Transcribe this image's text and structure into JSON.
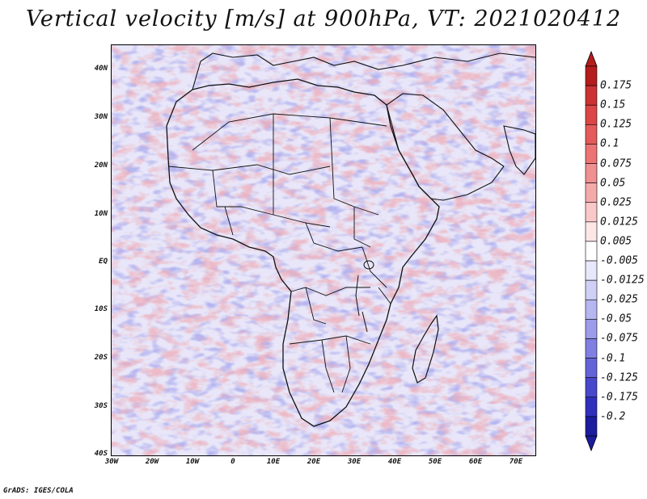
{
  "title": "Vertical velocity [m/s] at 900hPa, VT: 2021020412",
  "credit": "GrADS: IGES/COLA",
  "map": {
    "lat_labels": [
      "40N",
      "30N",
      "20N",
      "10N",
      "EQ",
      "10S",
      "20S",
      "30S",
      "40S"
    ],
    "lon_labels": [
      "30W",
      "20W",
      "10W",
      "0",
      "10E",
      "20E",
      "30E",
      "40E",
      "50E",
      "60E",
      "70E"
    ],
    "lat_range": [
      -40,
      45
    ],
    "lon_range": [
      -30,
      75
    ]
  },
  "colorbar": {
    "levels": [
      "0.175",
      "0.15",
      "0.125",
      "0.1",
      "0.075",
      "0.05",
      "0.025",
      "0.0125",
      "0.005",
      "-0.005",
      "-0.0125",
      "-0.025",
      "-0.05",
      "-0.075",
      "-0.1",
      "-0.125",
      "-0.175",
      "-0.2"
    ],
    "colors": [
      "#b51c1c",
      "#cc3232",
      "#dc4646",
      "#e55a5a",
      "#ec7474",
      "#f19090",
      "#f5aaaa",
      "#f9c8c8",
      "#fce6e6",
      "#ffffff",
      "#e8e8fb",
      "#d0d0f6",
      "#b6b6f0",
      "#9c9cea",
      "#8080e2",
      "#6464d8",
      "#4848cc",
      "#3030bc",
      "#1c1c9e"
    ]
  },
  "chart_data": {
    "type": "heatmap",
    "title": "Vertical velocity [m/s] at 900hPa, VT: 2021020412",
    "variable": "Vertical velocity",
    "units": "m/s",
    "level": "900hPa",
    "valid_time": "2021020412",
    "x_ticks": [
      "30W",
      "20W",
      "10W",
      "0",
      "10E",
      "20E",
      "30E",
      "40E",
      "50E",
      "60E",
      "70E"
    ],
    "y_ticks": [
      "40N",
      "30N",
      "20N",
      "10N",
      "EQ",
      "10S",
      "20S",
      "30S",
      "40S"
    ],
    "xlim": [
      -30,
      75
    ],
    "ylim": [
      -40,
      45
    ],
    "color_levels": [
      0.175,
      0.15,
      0.125,
      0.1,
      0.075,
      0.05,
      0.025,
      0.0125,
      0.005,
      -0.005,
      -0.0125,
      -0.025,
      -0.05,
      -0.075,
      -0.1,
      -0.125,
      -0.175,
      -0.2
    ]
  }
}
